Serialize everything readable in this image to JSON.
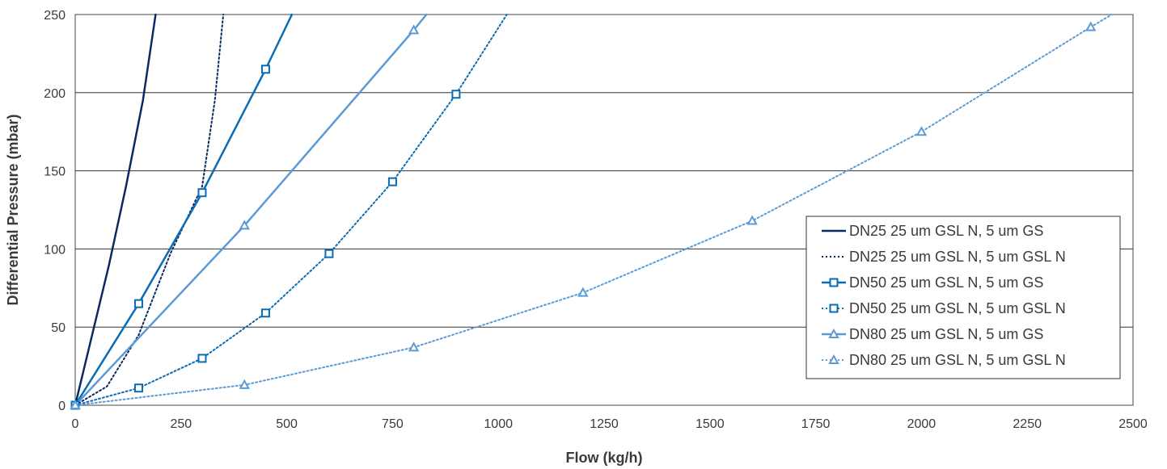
{
  "chart_data": {
    "type": "line",
    "title": "",
    "xlabel": "Flow (kg/h)",
    "ylabel": "Differential Pressure (mbar)",
    "xlim": [
      0,
      2500
    ],
    "ylim": [
      0,
      250
    ],
    "x_ticks": [
      "0",
      "250",
      "500",
      "750",
      "1000",
      "1250",
      "1500",
      "1750",
      "2000",
      "2250",
      "2500"
    ],
    "y_ticks": [
      "0",
      "50",
      "100",
      "150",
      "200",
      "250"
    ],
    "grid": "horizontal",
    "legend_position": "right",
    "series": [
      {
        "name": "DN25 25 um GSL N, 5 um GS",
        "color": "#0b2a63",
        "dash": "solid",
        "marker": "none",
        "x": [
          0,
          40,
          80,
          120,
          160,
          190
        ],
        "y": [
          0,
          45,
          90,
          140,
          195,
          250
        ]
      },
      {
        "name": "DN25 25 um GSL N, 5 um GSL N",
        "color": "#0b2a63",
        "dash": "dotted",
        "marker": "none",
        "x": [
          0,
          75,
          150,
          225,
          300,
          330,
          350
        ],
        "y": [
          0,
          12,
          45,
          97,
          140,
          195,
          250
        ]
      },
      {
        "name": "DN50 25 um GSL N, 5 um GS",
        "color": "#0a6cb5",
        "dash": "solid",
        "marker": "square",
        "x": [
          0,
          150,
          300,
          450,
          512
        ],
        "y": [
          0,
          65,
          136,
          215,
          250
        ]
      },
      {
        "name": "DN50 25 um GSL N, 5 um GSL N",
        "color": "#0a6cb5",
        "dash": "dotted",
        "marker": "square",
        "x": [
          0,
          150,
          300,
          450,
          600,
          750,
          900,
          1020
        ],
        "y": [
          0,
          11,
          30,
          59,
          97,
          143,
          199,
          250
        ]
      },
      {
        "name": "DN80 25 um GSL N, 5 um GS",
        "color": "#5b9bd5",
        "dash": "solid",
        "marker": "triangle",
        "x": [
          0,
          400,
          800,
          830
        ],
        "y": [
          0,
          115,
          240,
          250
        ]
      },
      {
        "name": "DN80 25 um GSL N, 5 um GSL N",
        "color": "#5b9bd5",
        "dash": "dotted",
        "marker": "triangle",
        "x": [
          0,
          400,
          800,
          1200,
          1600,
          2000,
          2400,
          2450
        ],
        "y": [
          0,
          13,
          37,
          72,
          118,
          175,
          242,
          250
        ]
      }
    ],
    "markers": {
      "DN50 25 um GSL N, 5 um GS": [
        [
          0,
          0
        ],
        [
          150,
          65
        ],
        [
          300,
          136
        ],
        [
          450,
          215
        ]
      ],
      "DN50 25 um GSL N, 5 um GSL N": [
        [
          0,
          0
        ],
        [
          150,
          11
        ],
        [
          300,
          30
        ],
        [
          450,
          59
        ],
        [
          600,
          97
        ],
        [
          750,
          143
        ],
        [
          900,
          199
        ]
      ],
      "DN80 25 um GSL N, 5 um GS": [
        [
          0,
          0
        ],
        [
          400,
          115
        ],
        [
          800,
          240
        ]
      ],
      "DN80 25 um GSL N, 5 um GSL N": [
        [
          0,
          0
        ],
        [
          400,
          13
        ],
        [
          800,
          37
        ],
        [
          1200,
          72
        ],
        [
          1600,
          118
        ],
        [
          2000,
          175
        ],
        [
          2400,
          242
        ]
      ]
    }
  }
}
